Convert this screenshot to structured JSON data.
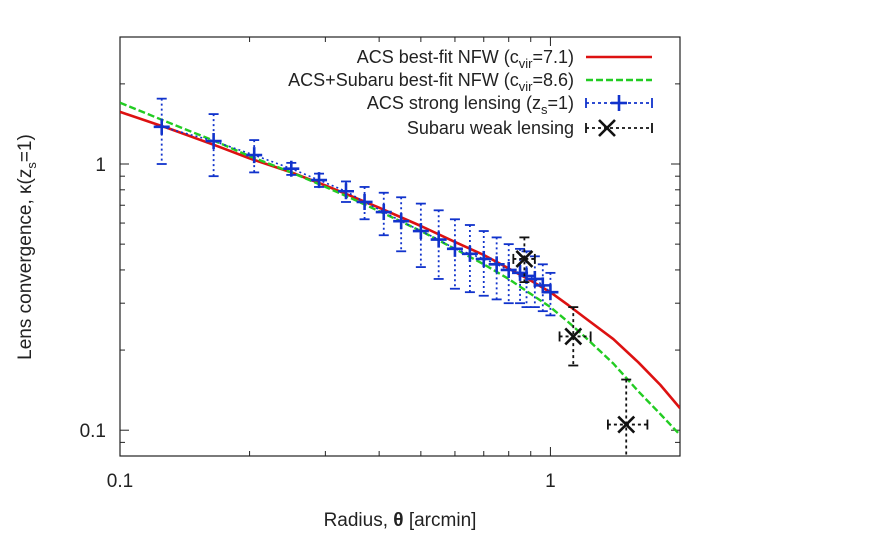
{
  "chart_data": {
    "type": "line",
    "title": "",
    "xlabel_main": "Radius, ",
    "xlabel_theta": "θ",
    "xlabel_units": " [arcmin]",
    "ylabel_main": "Lens convergence, κ(z",
    "ylabel_sub": "s",
    "ylabel_tail": "=1)",
    "xscale": "log",
    "yscale": "log",
    "xlim": [
      0.1,
      2.0
    ],
    "ylim": [
      0.08,
      3.0
    ],
    "xticks": [
      {
        "value": 0.1,
        "label": "0.1"
      },
      {
        "value": 1,
        "label": "1"
      }
    ],
    "yticks": [
      {
        "value": 0.1,
        "label": "0.1"
      },
      {
        "value": 1,
        "label": "1"
      }
    ],
    "legend_position": "top-right",
    "series": [
      {
        "name": "ACS best-fit NFW (c_vir=7.1)",
        "legend_main": "ACS best-fit NFW (c",
        "legend_sub": "vir",
        "legend_tail": "=7.1)",
        "style": "solid",
        "color": "#dd1111",
        "x": [
          0.1,
          0.13,
          0.17,
          0.2,
          0.25,
          0.3,
          0.35,
          0.4,
          0.5,
          0.6,
          0.7,
          0.8,
          0.9,
          1.0,
          1.1,
          1.2,
          1.4,
          1.6,
          1.8,
          2.0
        ],
        "y": [
          1.57,
          1.36,
          1.16,
          1.05,
          0.93,
          0.83,
          0.75,
          0.685,
          0.585,
          0.51,
          0.455,
          0.405,
          0.365,
          0.33,
          0.295,
          0.265,
          0.22,
          0.18,
          0.148,
          0.121
        ]
      },
      {
        "name": "ACS+Subaru best-fit NFW (c_vir=8.6)",
        "legend_main": "ACS+Subaru best-fit NFW (c",
        "legend_sub": "vir",
        "legend_tail": "=8.6)",
        "style": "dashed",
        "color": "#22cc22",
        "x": [
          0.1,
          0.13,
          0.17,
          0.2,
          0.25,
          0.3,
          0.35,
          0.4,
          0.5,
          0.6,
          0.7,
          0.8,
          0.9,
          1.0,
          1.1,
          1.2,
          1.4,
          1.6,
          1.8,
          2.0
        ],
        "y": [
          1.7,
          1.43,
          1.2,
          1.07,
          0.93,
          0.82,
          0.735,
          0.665,
          0.56,
          0.48,
          0.42,
          0.37,
          0.325,
          0.29,
          0.255,
          0.225,
          0.178,
          0.14,
          0.115,
          0.096
        ]
      },
      {
        "name": "ACS strong lensing (z_s=1)",
        "legend_main": "ACS strong lensing (z",
        "legend_sub": "s",
        "legend_tail": "=1)",
        "style": "points-errorbars",
        "marker": "plus",
        "color": "#1133cc",
        "x": [
          0.125,
          0.165,
          0.205,
          0.25,
          0.29,
          0.335,
          0.37,
          0.41,
          0.45,
          0.5,
          0.55,
          0.6,
          0.65,
          0.7,
          0.75,
          0.8,
          0.85,
          0.88,
          0.92,
          0.96,
          1.0
        ],
        "y": [
          1.38,
          1.22,
          1.08,
          0.96,
          0.87,
          0.79,
          0.72,
          0.66,
          0.61,
          0.56,
          0.52,
          0.48,
          0.46,
          0.44,
          0.42,
          0.4,
          0.39,
          0.38,
          0.37,
          0.35,
          0.33
        ],
        "y_err": [
          0.38,
          0.32,
          0.15,
          0.05,
          0.05,
          0.07,
          0.1,
          0.12,
          0.14,
          0.15,
          0.15,
          0.14,
          0.13,
          0.12,
          0.11,
          0.1,
          0.09,
          0.09,
          0.08,
          0.07,
          0.06
        ]
      },
      {
        "name": "Subaru weak lensing",
        "legend_main": "Subaru weak lensing",
        "legend_sub": "",
        "legend_tail": "",
        "style": "points-errorbars",
        "marker": "x",
        "color": "#111111",
        "x": [
          0.87,
          1.13,
          1.5
        ],
        "y": [
          0.44,
          0.225,
          0.105
        ],
        "x_err_lo": [
          0.82,
          1.05,
          1.36
        ],
        "x_err_hi": [
          0.92,
          1.24,
          1.68
        ],
        "y_err_lo": [
          0.36,
          0.175,
          0.078
        ],
        "y_err_hi": [
          0.53,
          0.29,
          0.155
        ]
      }
    ]
  }
}
